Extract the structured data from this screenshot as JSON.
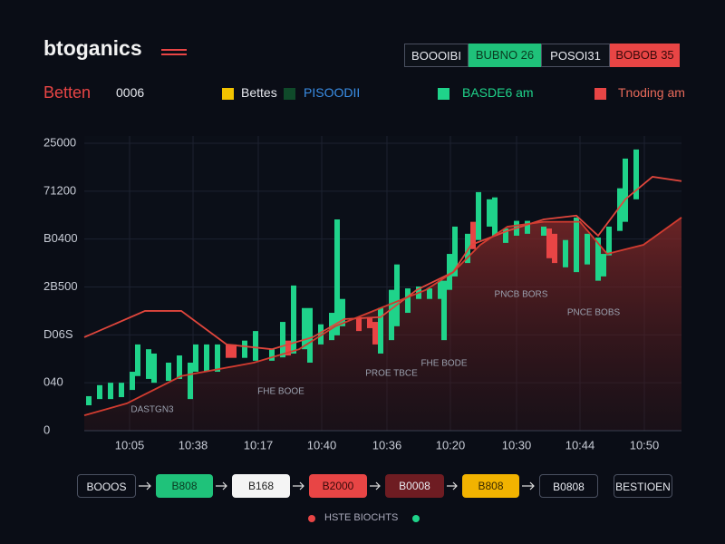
{
  "header": {
    "title": "btoganics",
    "buttons": [
      "BOOOIBI",
      "BUBNO 26",
      "POSOI31",
      "BOBOB 35"
    ]
  },
  "toolbar": {
    "label": "Betten",
    "value": "0006",
    "items": [
      "Bettes",
      "PISOODII",
      "BASDE6 am",
      "Tnoding am"
    ]
  },
  "chart_data": {
    "type": "candlestick",
    "xlim": [
      0,
      659
    ],
    "xticks": [
      {
        "value": 50,
        "label": "10:05"
      },
      {
        "value": 120,
        "label": "10:38"
      },
      {
        "value": 192,
        "label": "10:17"
      },
      {
        "value": 262,
        "label": "10:40"
      },
      {
        "value": 334,
        "label": "10:36"
      },
      {
        "value": 404,
        "label": "10:20"
      },
      {
        "value": 477,
        "label": "10:30"
      },
      {
        "value": 547,
        "label": "10:44"
      },
      {
        "value": 618,
        "label": "10:50"
      }
    ],
    "ylim": [
      0,
      600
    ],
    "yticks": [
      0,
      {
        "value": 100,
        "label": "040"
      },
      {
        "value": 200,
        "label": "D06S"
      },
      {
        "value": 300,
        "label": "2B500"
      },
      {
        "value": 400,
        "label": "B0400"
      },
      {
        "value": 500,
        "label": "71200"
      },
      {
        "value": 600,
        "label": "25000"
      }
    ],
    "grid": true,
    "up_color": "#1fd38a",
    "down_color": "#e84545",
    "candles": {
      "x": [
        5,
        17,
        29,
        41,
        53,
        59,
        71,
        77,
        93,
        105,
        117,
        123,
        135,
        147,
        159,
        165,
        177,
        189,
        207,
        219,
        225,
        231,
        243,
        249,
        261,
        273,
        279,
        285,
        303,
        315,
        321,
        327,
        339,
        345,
        357,
        369,
        381,
        393,
        397,
        403,
        409,
        423,
        429,
        435,
        447,
        453,
        465,
        477,
        489,
        507,
        513,
        519,
        531,
        543,
        555,
        567,
        573,
        579,
        591,
        597,
        609
      ],
      "open": [
        53,
        66,
        66,
        70,
        85,
        114,
        108,
        100,
        104,
        108,
        66,
        123,
        123,
        123,
        180,
        180,
        152,
        146,
        146,
        153,
        188,
        161,
        170,
        142,
        180,
        189,
        199,
        218,
        237,
        237,
        227,
        161,
        189,
        218,
        246,
        275,
        275,
        275,
        189,
        294,
        322,
        350,
        436,
        398,
        426,
        407,
        392,
        407,
        411,
        407,
        422,
        411,
        341,
        331,
        347,
        313,
        322,
        366,
        417,
        436,
        483
      ],
      "close": [
        72,
        95,
        100,
        100,
        123,
        180,
        170,
        161,
        142,
        157,
        142,
        180,
        180,
        180,
        152,
        152,
        188,
        208,
        170,
        227,
        157,
        303,
        256,
        256,
        222,
        246,
        441,
        275,
        208,
        214,
        180,
        256,
        294,
        347,
        297,
        301,
        297,
        313,
        313,
        369,
        426,
        411,
        379,
        498,
        483,
        487,
        422,
        438,
        438,
        426,
        360,
        350,
        398,
        445,
        411,
        403,
        369,
        426,
        506,
        568,
        587
      ]
    },
    "lines": [
      {
        "color": "#e0463c",
        "x": [
          0,
          67,
          107,
          157,
          207,
          252,
          287,
          327,
          367,
          407,
          427,
          467,
          507,
          543,
          567,
          597,
          627,
          659
        ],
        "values": [
          195,
          250,
          250,
          180,
          170,
          195,
          233,
          237,
          294,
          331,
          388,
          417,
          441,
          449,
          407,
          483,
          530,
          521
        ]
      },
      {
        "color": "#d23c30",
        "fill": true,
        "x": [
          0,
          47,
          107,
          187,
          237,
          277,
          327,
          377,
          407,
          437,
          467,
          507,
          547,
          577,
          617,
          659
        ],
        "values": [
          32,
          57,
          114,
          142,
          170,
          218,
          256,
          294,
          331,
          388,
          426,
          436,
          436,
          369,
          388,
          445
        ]
      }
    ],
    "annotations": [
      "DASTGN3",
      "FHE BOOE",
      "PROE TBCE",
      "FHE BODE",
      "PNCB BORS",
      "PNCE BOBS"
    ]
  },
  "footer": {
    "buttons": [
      "BOOOS",
      "B808",
      "B168",
      "B2000",
      "B0008",
      "B808",
      "B0808",
      "BESTIOEN"
    ],
    "caption": "HSTE BIOCHTS"
  }
}
